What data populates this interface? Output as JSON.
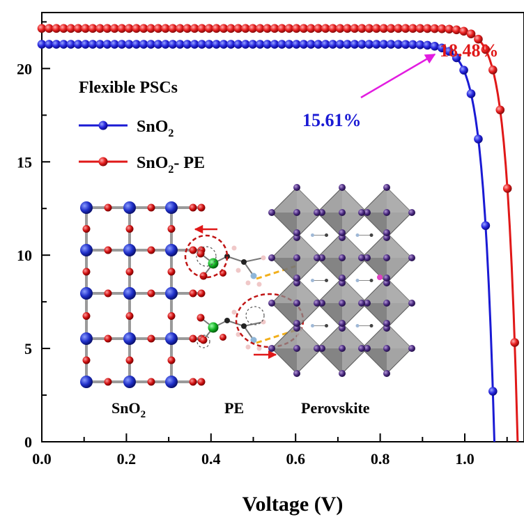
{
  "chart_data": {
    "type": "line",
    "title": "",
    "xlabel": "Voltage (V)",
    "ylabel": "",
    "xlim": [
      0.0,
      1.14
    ],
    "ylim": [
      0,
      23
    ],
    "xticks": [
      "0.0",
      "0.2",
      "0.4",
      "0.6",
      "0.8",
      "1.0"
    ],
    "yticks": [
      "0",
      "5",
      "10",
      "15",
      "20"
    ],
    "legend": {
      "title": "Flexible PSCs",
      "placement": "top-left",
      "entries": [
        {
          "main": "SnO",
          "sub": "2",
          "rest": ""
        },
        {
          "main": "SnO",
          "sub": "2",
          "rest": "- PE"
        }
      ]
    },
    "series": [
      {
        "name": "SnO2",
        "color": "#1a1ad4",
        "jsc": 21.3,
        "voc": 1.07,
        "n_vt": 0.0265
      },
      {
        "name": "SnO2- PE",
        "color": "#e01818",
        "jsc": 22.15,
        "voc": 1.125,
        "n_vt": 0.0255
      }
    ],
    "annotations": [
      {
        "text": "15.61%",
        "color": "#1a1ad4"
      },
      {
        "text": "18.48%",
        "color": "#e01818"
      }
    ],
    "arrow_color": "#e21ce0",
    "inset": {
      "labels": [
        {
          "main": "SnO",
          "sub": "2"
        },
        {
          "main": "PE",
          "sub": ""
        },
        {
          "main": "Perovskite",
          "sub": ""
        }
      ]
    }
  }
}
